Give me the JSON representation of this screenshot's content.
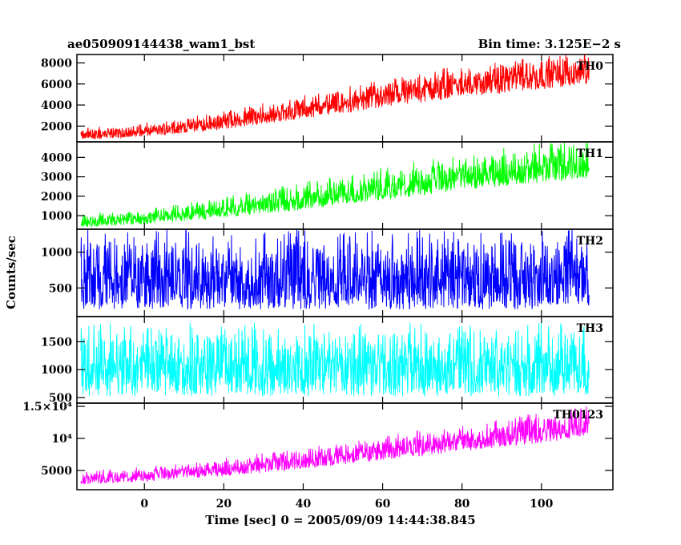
{
  "header": {
    "title": "ae050909144438_wam1_bst",
    "bin_time": "Bin time: 3.125E−2 s"
  },
  "chart_data": {
    "type": "line",
    "title": "ae050909144438_wam1_bst",
    "xlabel": "Time [sec] 0 = 2005/09/09 14:44:38.845",
    "ylabel": "Counts/sec",
    "xlim": [
      -17,
      118
    ],
    "x_ticks": [
      "0",
      "20",
      "40",
      "60",
      "80",
      "100"
    ],
    "x_tick_values": [
      0,
      20,
      40,
      60,
      80,
      100
    ],
    "x_data_range": [
      -16,
      112
    ],
    "panels": [
      {
        "name": "TH0",
        "color": "#ff0000",
        "ylim": [
          500,
          8800
        ],
        "y_ticks": [
          "2000",
          "4000",
          "6000",
          "8000"
        ],
        "y_tick_values": [
          2000,
          4000,
          6000,
          8000
        ],
        "trend": [
          {
            "x": -16,
            "low": 700,
            "mid": 1100,
            "high": 1700
          },
          {
            "x": 0,
            "low": 1000,
            "mid": 1500,
            "high": 2100
          },
          {
            "x": 20,
            "low": 1700,
            "mid": 2400,
            "high": 3200
          },
          {
            "x": 40,
            "low": 2700,
            "mid": 3600,
            "high": 4600
          },
          {
            "x": 60,
            "low": 3700,
            "mid": 4800,
            "high": 6000
          },
          {
            "x": 80,
            "low": 4700,
            "mid": 6000,
            "high": 7400
          },
          {
            "x": 100,
            "low": 5500,
            "mid": 6900,
            "high": 8300
          },
          {
            "x": 112,
            "low": 6000,
            "mid": 7300,
            "high": 8600
          }
        ]
      },
      {
        "name": "TH1",
        "color": "#00ff00",
        "ylim": [
          300,
          4800
        ],
        "y_ticks": [
          "1000",
          "2000",
          "3000",
          "4000"
        ],
        "y_tick_values": [
          1000,
          2000,
          3000,
          4000
        ],
        "trend": [
          {
            "x": -16,
            "low": 400,
            "mid": 650,
            "high": 1000
          },
          {
            "x": 0,
            "low": 550,
            "mid": 850,
            "high": 1200
          },
          {
            "x": 20,
            "low": 900,
            "mid": 1300,
            "high": 1800
          },
          {
            "x": 40,
            "low": 1300,
            "mid": 1850,
            "high": 2500
          },
          {
            "x": 60,
            "low": 1800,
            "mid": 2400,
            "high": 3200
          },
          {
            "x": 80,
            "low": 2300,
            "mid": 2950,
            "high": 3900
          },
          {
            "x": 100,
            "low": 2700,
            "mid": 3350,
            "high": 4400
          },
          {
            "x": 112,
            "low": 2900,
            "mid": 3550,
            "high": 4600
          }
        ]
      },
      {
        "name": "TH2",
        "color": "#0000ff",
        "ylim": [
          100,
          1320
        ],
        "y_ticks": [
          "500",
          "1000"
        ],
        "y_tick_values": [
          500,
          1000
        ],
        "trend": [
          {
            "x": -16,
            "low": 200,
            "mid": 620,
            "high": 1150
          },
          {
            "x": 112,
            "low": 200,
            "mid": 620,
            "high": 1150
          }
        ]
      },
      {
        "name": "TH3",
        "color": "#00ffff",
        "ylim": [
          400,
          1950
        ],
        "y_ticks": [
          "500",
          "1000",
          "1500"
        ],
        "y_tick_values": [
          500,
          1000,
          1500
        ],
        "trend": [
          {
            "x": -16,
            "low": 520,
            "mid": 1080,
            "high": 1650
          },
          {
            "x": 112,
            "low": 520,
            "mid": 1080,
            "high": 1650
          }
        ]
      },
      {
        "name": "TH0123",
        "color": "#ff00ff",
        "ylim": [
          2000,
          15500
        ],
        "y_ticks": [
          "5000",
          "10⁴",
          "1.5×10⁴"
        ],
        "y_tick_values": [
          5000,
          10000,
          15000
        ],
        "trend": [
          {
            "x": -16,
            "low": 2800,
            "mid": 3600,
            "high": 4600
          },
          {
            "x": 0,
            "low": 3300,
            "mid": 4200,
            "high": 5200
          },
          {
            "x": 20,
            "low": 4100,
            "mid": 5200,
            "high": 6500
          },
          {
            "x": 40,
            "low": 5200,
            "mid": 6500,
            "high": 8000
          },
          {
            "x": 60,
            "low": 6600,
            "mid": 8100,
            "high": 9800
          },
          {
            "x": 80,
            "low": 8000,
            "mid": 9700,
            "high": 11600
          },
          {
            "x": 100,
            "low": 9300,
            "mid": 11100,
            "high": 13300
          },
          {
            "x": 112,
            "low": 10200,
            "mid": 12100,
            "high": 14500
          }
        ]
      }
    ]
  }
}
